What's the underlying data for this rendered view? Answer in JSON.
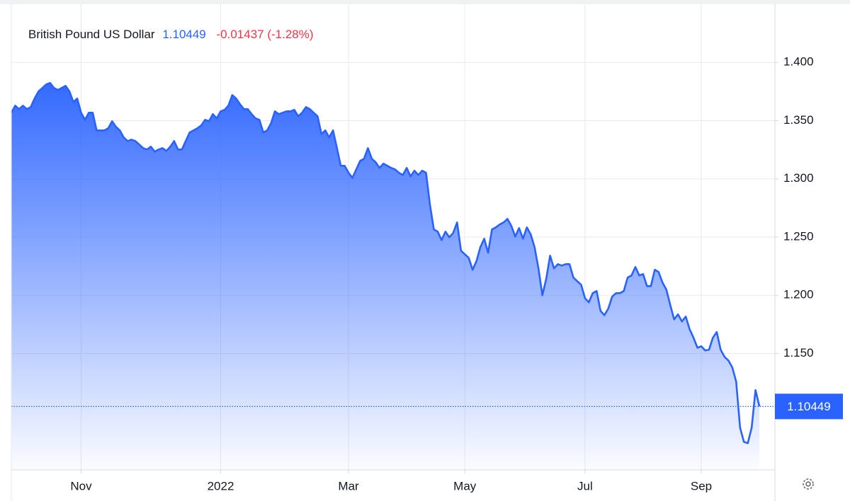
{
  "chart_data": {
    "type": "area",
    "title": "British Pound US Dollar",
    "price": 1.10449,
    "change_label": "-0.01437 (-1.28%)",
    "last_value": 1.10449,
    "color": "#2962ff",
    "change_color": "#f23645",
    "grid": true,
    "ylim": [
      1.05,
      1.45
    ],
    "yticks": [
      {
        "value": 1.15,
        "label": "1.150"
      },
      {
        "value": 1.2,
        "label": "1.200"
      },
      {
        "value": 1.25,
        "label": "1.250"
      },
      {
        "value": 1.3,
        "label": "1.300"
      },
      {
        "value": 1.35,
        "label": "1.350"
      },
      {
        "value": 1.4,
        "label": "1.400"
      }
    ],
    "xlim": [
      0,
      197
    ],
    "xticks": [
      {
        "value": 18,
        "label": "Nov"
      },
      {
        "value": 54,
        "label": "2022"
      },
      {
        "value": 87,
        "label": "Mar"
      },
      {
        "value": 117,
        "label": "May"
      },
      {
        "value": 148,
        "label": "Jul"
      },
      {
        "value": 178,
        "label": "Sep"
      }
    ],
    "values": [
      1.3568,
      1.3629,
      1.3599,
      1.3629,
      1.3599,
      1.3617,
      1.369,
      1.3751,
      1.3781,
      1.3811,
      1.3824,
      1.3781,
      1.3763,
      1.3781,
      1.3799,
      1.3751,
      1.366,
      1.369,
      1.3568,
      1.3507,
      1.3568,
      1.3568,
      1.3416,
      1.3416,
      1.3416,
      1.3435,
      1.3495,
      1.3447,
      1.3416,
      1.3356,
      1.3325,
      1.3337,
      1.3325,
      1.3295,
      1.3264,
      1.3252,
      1.3276,
      1.3234,
      1.3252,
      1.3264,
      1.324,
      1.3276,
      1.3325,
      1.3252,
      1.3252,
      1.3325,
      1.3398,
      1.3416,
      1.3435,
      1.3459,
      1.3507,
      1.3495,
      1.3556,
      1.352,
      1.358,
      1.3593,
      1.3629,
      1.372,
      1.369,
      1.3641,
      1.3599,
      1.3599,
      1.3556,
      1.352,
      1.3507,
      1.3398,
      1.3416,
      1.3477,
      1.358,
      1.3556,
      1.3568,
      1.358,
      1.358,
      1.3593,
      1.3538,
      1.3568,
      1.3617,
      1.3599,
      1.3568,
      1.3538,
      1.3386,
      1.3416,
      1.3356,
      1.3416,
      1.3264,
      1.3112,
      1.3112,
      1.3052,
      1.3009,
      1.3082,
      1.3155,
      1.3173,
      1.3264,
      1.3173,
      1.3143,
      1.3094,
      1.3131,
      1.3112,
      1.3094,
      1.3082,
      1.3052,
      1.3033,
      1.3094,
      1.3021,
      1.307,
      1.3033,
      1.307,
      1.3052,
      1.2778,
      1.2565,
      1.2547,
      1.2474,
      1.2547,
      1.2498,
      1.2535,
      1.2626,
      1.2383,
      1.2352,
      1.2322,
      1.2219,
      1.2292,
      1.2413,
      1.2486,
      1.2365,
      1.2565,
      1.2583,
      1.2608,
      1.2626,
      1.2656,
      1.2596,
      1.2504,
      1.2577,
      1.2486,
      1.2583,
      1.2523,
      1.2413,
      1.2231,
      1.2,
      1.214,
      1.234,
      1.2231,
      1.2267,
      1.2255,
      1.2267,
      1.2267,
      1.2152,
      1.2121,
      1.2091,
      1.1975,
      1.1939,
      1.2018,
      1.2036,
      1.1866,
      1.1829,
      1.1884,
      1.1988,
      1.2018,
      1.2018,
      1.2036,
      1.2152,
      1.217,
      1.2243,
      1.217,
      1.2182,
      1.2079,
      1.2079,
      1.2219,
      1.22,
      1.2109,
      1.2048,
      1.1915,
      1.1793,
      1.1836,
      1.1775,
      1.1817,
      1.1708,
      1.1635,
      1.1549,
      1.1562,
      1.1526,
      1.1532,
      1.1635,
      1.1684,
      1.1532,
      1.1471,
      1.144,
      1.138,
      1.1258,
      1.0863,
      1.0741,
      1.0729,
      1.0863,
      1.1185,
      1.10449
    ]
  }
}
